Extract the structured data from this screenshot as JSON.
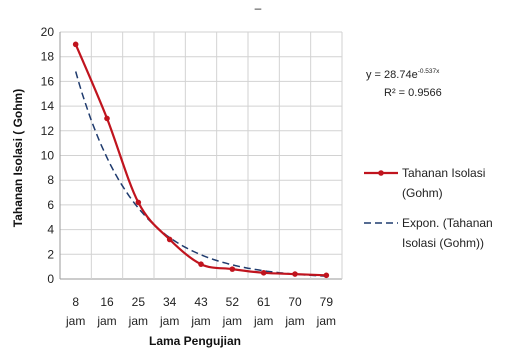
{
  "chart_data": {
    "type": "line",
    "title": "",
    "xlabel": "Lama Pengujian",
    "ylabel": "Tahanan Isolasi ( Gohm)",
    "ylim": [
      0,
      20
    ],
    "ytick_step": 2,
    "grid": true,
    "legend_position": "right",
    "categories": [
      [
        "8",
        "jam"
      ],
      [
        "16",
        "jam"
      ],
      [
        "25",
        "jam"
      ],
      [
        "34",
        "jam"
      ],
      [
        "43",
        "jam"
      ],
      [
        "52",
        "jam"
      ],
      [
        "61",
        "jam"
      ],
      [
        "70",
        "jam"
      ],
      [
        "79",
        "jam"
      ]
    ],
    "series": [
      {
        "name": [
          "Tahanan Isolasi",
          "(Gohm)"
        ],
        "color": "#c0141e",
        "style": "solid-marker",
        "values": [
          19,
          13,
          6.2,
          3.2,
          1.2,
          0.8,
          0.5,
          0.4,
          0.3
        ]
      },
      {
        "name": [
          "Expon. (Tahanan",
          "Isolasi (Gohm))"
        ],
        "color": "#1f3b6e",
        "style": "dashed",
        "trendline": {
          "a": 28.74,
          "b": -0.537
        }
      }
    ],
    "annotations": {
      "equation_base": "y = 28.74e",
      "equation_exp": "-0.537x",
      "r2_label": "R² = 0.9566"
    }
  },
  "top_mark": "–"
}
